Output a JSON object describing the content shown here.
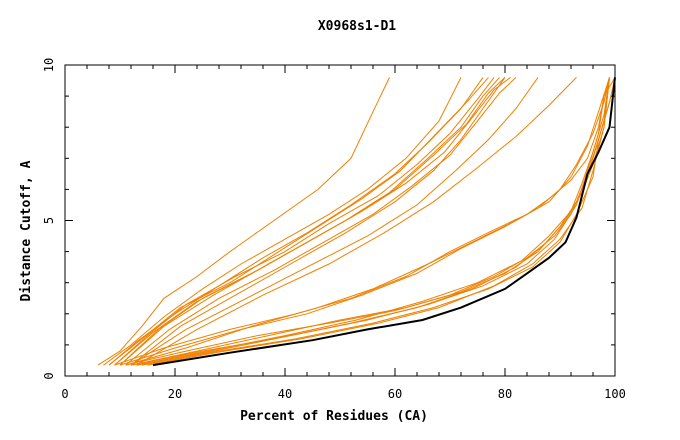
{
  "chart_data": {
    "type": "line",
    "title": "X0968s1-D1",
    "xlabel": "Percent of Residues (CA)",
    "ylabel": "Distance Cutoff, A",
    "xlim": [
      0,
      100
    ],
    "ylim": [
      0,
      10
    ],
    "x_ticks": [
      0,
      20,
      40,
      60,
      80,
      100
    ],
    "y_ticks": [
      0,
      5,
      10
    ],
    "grid": false,
    "colors": {
      "models": "#f08000",
      "highlight": "#000000",
      "frame": "#000000"
    },
    "highlight_series": {
      "name": "",
      "points": [
        [
          16,
          0.35
        ],
        [
          30,
          0.75
        ],
        [
          45,
          1.15
        ],
        [
          55,
          1.5
        ],
        [
          65,
          1.8
        ],
        [
          72,
          2.2
        ],
        [
          80,
          2.8
        ],
        [
          84,
          3.3
        ],
        [
          88,
          3.8
        ],
        [
          91,
          4.3
        ],
        [
          93,
          5.1
        ],
        [
          95,
          6.5
        ],
        [
          97,
          7.2
        ],
        [
          99,
          8.0
        ],
        [
          100,
          9.6
        ]
      ]
    },
    "series": [
      {
        "points": [
          [
            6,
            0.35
          ],
          [
            10,
            0.8
          ],
          [
            14,
            1.6
          ],
          [
            18,
            2.5
          ],
          [
            24,
            3.2
          ],
          [
            30,
            4.0
          ],
          [
            38,
            5.0
          ],
          [
            46,
            6.0
          ],
          [
            52,
            7.0
          ],
          [
            56,
            8.5
          ],
          [
            59,
            9.6
          ]
        ]
      },
      {
        "points": [
          [
            7,
            0.35
          ],
          [
            12,
            1.0
          ],
          [
            18,
            1.9
          ],
          [
            25,
            2.8
          ],
          [
            32,
            3.6
          ],
          [
            40,
            4.4
          ],
          [
            48,
            5.2
          ],
          [
            55,
            6.0
          ],
          [
            62,
            7.0
          ],
          [
            68,
            8.2
          ],
          [
            72,
            9.6
          ]
        ]
      },
      {
        "points": [
          [
            8,
            0.35
          ],
          [
            13,
            1.1
          ],
          [
            20,
            2.0
          ],
          [
            28,
            2.9
          ],
          [
            36,
            3.8
          ],
          [
            44,
            4.6
          ],
          [
            52,
            5.5
          ],
          [
            60,
            6.5
          ],
          [
            66,
            7.5
          ],
          [
            72,
            8.6
          ],
          [
            76,
            9.6
          ]
        ]
      },
      {
        "points": [
          [
            8,
            0.35
          ],
          [
            14,
            1.2
          ],
          [
            21,
            2.2
          ],
          [
            30,
            3.0
          ],
          [
            38,
            3.9
          ],
          [
            46,
            4.8
          ],
          [
            54,
            5.7
          ],
          [
            61,
            6.6
          ],
          [
            67,
            7.7
          ],
          [
            73,
            8.8
          ],
          [
            77,
            9.6
          ]
        ]
      },
      {
        "points": [
          [
            9,
            0.35
          ],
          [
            15,
            1.3
          ],
          [
            22,
            2.3
          ],
          [
            31,
            3.2
          ],
          [
            40,
            4.0
          ],
          [
            48,
            4.9
          ],
          [
            57,
            5.8
          ],
          [
            64,
            6.8
          ],
          [
            70,
            7.8
          ],
          [
            75,
            8.9
          ],
          [
            78,
            9.6
          ]
        ]
      },
      {
        "points": [
          [
            9,
            0.35
          ],
          [
            16,
            1.4
          ],
          [
            24,
            2.4
          ],
          [
            34,
            3.3
          ],
          [
            43,
            4.2
          ],
          [
            51,
            5.0
          ],
          [
            59,
            5.9
          ],
          [
            66,
            7.0
          ],
          [
            72,
            8.0
          ],
          [
            76,
            9.0
          ],
          [
            79,
            9.6
          ]
        ]
      },
      {
        "points": [
          [
            10,
            0.35
          ],
          [
            17,
            1.5
          ],
          [
            25,
            2.5
          ],
          [
            35,
            3.4
          ],
          [
            44,
            4.3
          ],
          [
            52,
            5.1
          ],
          [
            60,
            6.0
          ],
          [
            67,
            7.1
          ],
          [
            73,
            8.1
          ],
          [
            77,
            9.1
          ],
          [
            80,
            9.6
          ]
        ]
      },
      {
        "points": [
          [
            10,
            0.35
          ],
          [
            18,
            1.6
          ],
          [
            27,
            2.6
          ],
          [
            36,
            3.5
          ],
          [
            45,
            4.4
          ],
          [
            54,
            5.3
          ],
          [
            62,
            6.2
          ],
          [
            69,
            7.2
          ],
          [
            74,
            8.3
          ],
          [
            78,
            9.2
          ],
          [
            81,
            9.6
          ]
        ]
      },
      {
        "points": [
          [
            11,
            0.35
          ],
          [
            19,
            1.5
          ],
          [
            28,
            2.5
          ],
          [
            38,
            3.4
          ],
          [
            47,
            4.3
          ],
          [
            56,
            5.2
          ],
          [
            63,
            6.1
          ],
          [
            70,
            7.1
          ],
          [
            75,
            8.2
          ],
          [
            79,
            9.1
          ],
          [
            82,
            9.6
          ]
        ]
      },
      {
        "points": [
          [
            12,
            0.35
          ],
          [
            21,
            1.6
          ],
          [
            31,
            2.6
          ],
          [
            41,
            3.6
          ],
          [
            51,
            4.6
          ],
          [
            60,
            5.6
          ],
          [
            67,
            6.6
          ],
          [
            72,
            7.6
          ],
          [
            76,
            8.6
          ],
          [
            80,
            9.6
          ]
        ]
      },
      {
        "points": [
          [
            12,
            0.35
          ],
          [
            22,
            1.5
          ],
          [
            33,
            2.5
          ],
          [
            44,
            3.5
          ],
          [
            55,
            4.5
          ],
          [
            64,
            5.5
          ],
          [
            71,
            6.6
          ],
          [
            77,
            7.6
          ],
          [
            82,
            8.6
          ],
          [
            86,
            9.6
          ]
        ]
      },
      {
        "points": [
          [
            13,
            0.35
          ],
          [
            24,
            1.5
          ],
          [
            36,
            2.6
          ],
          [
            48,
            3.6
          ],
          [
            58,
            4.6
          ],
          [
            67,
            5.6
          ],
          [
            75,
            6.7
          ],
          [
            82,
            7.7
          ],
          [
            88,
            8.7
          ],
          [
            93,
            9.6
          ]
        ]
      },
      {
        "points": [
          [
            9,
            0.35
          ],
          [
            18,
            0.9
          ],
          [
            30,
            1.5
          ],
          [
            42,
            2.0
          ],
          [
            52,
            2.5
          ],
          [
            62,
            3.2
          ],
          [
            70,
            4.0
          ],
          [
            78,
            4.7
          ],
          [
            84,
            5.2
          ],
          [
            88,
            5.7
          ],
          [
            92,
            6.3
          ],
          [
            95,
            7.0
          ],
          [
            97,
            8.0
          ],
          [
            98,
            9.0
          ],
          [
            99,
            9.6
          ]
        ]
      },
      {
        "points": [
          [
            10,
            0.35
          ],
          [
            20,
            0.9
          ],
          [
            32,
            1.5
          ],
          [
            44,
            2.0
          ],
          [
            54,
            2.6
          ],
          [
            64,
            3.3
          ],
          [
            72,
            4.1
          ],
          [
            80,
            4.8
          ],
          [
            86,
            5.4
          ],
          [
            90,
            6.0
          ],
          [
            93,
            6.8
          ],
          [
            96,
            7.8
          ],
          [
            98,
            8.8
          ],
          [
            99,
            9.6
          ]
        ]
      },
      {
        "points": [
          [
            11,
            0.35
          ],
          [
            22,
            0.9
          ],
          [
            34,
            1.6
          ],
          [
            46,
            2.2
          ],
          [
            56,
            2.8
          ],
          [
            66,
            3.6
          ],
          [
            74,
            4.3
          ],
          [
            82,
            5.0
          ],
          [
            88,
            5.6
          ],
          [
            92,
            6.4
          ],
          [
            95,
            7.4
          ],
          [
            97,
            8.5
          ],
          [
            99,
            9.6
          ]
        ]
      },
      {
        "points": [
          [
            11,
            0.35
          ],
          [
            22,
            0.8
          ],
          [
            35,
            1.3
          ],
          [
            48,
            1.7
          ],
          [
            60,
            2.1
          ],
          [
            70,
            2.6
          ],
          [
            78,
            3.2
          ],
          [
            84,
            3.8
          ],
          [
            89,
            4.5
          ],
          [
            92,
            5.2
          ],
          [
            94,
            6.0
          ],
          [
            96,
            7.0
          ],
          [
            98,
            8.2
          ],
          [
            99,
            9.6
          ]
        ]
      },
      {
        "points": [
          [
            12,
            0.35
          ],
          [
            24,
            0.8
          ],
          [
            37,
            1.3
          ],
          [
            50,
            1.8
          ],
          [
            62,
            2.2
          ],
          [
            72,
            2.7
          ],
          [
            80,
            3.3
          ],
          [
            86,
            4.0
          ],
          [
            90,
            4.8
          ],
          [
            93,
            5.6
          ],
          [
            95,
            6.5
          ],
          [
            97,
            7.6
          ],
          [
            99,
            8.8
          ],
          [
            100,
            9.6
          ]
        ]
      },
      {
        "points": [
          [
            12,
            0.35
          ],
          [
            25,
            0.8
          ],
          [
            38,
            1.2
          ],
          [
            52,
            1.7
          ],
          [
            64,
            2.2
          ],
          [
            74,
            2.8
          ],
          [
            82,
            3.5
          ],
          [
            87,
            4.2
          ],
          [
            91,
            5.0
          ],
          [
            94,
            5.9
          ],
          [
            96,
            6.8
          ],
          [
            98,
            8.0
          ],
          [
            99,
            9.6
          ]
        ]
      },
      {
        "points": [
          [
            13,
            0.35
          ],
          [
            26,
            0.8
          ],
          [
            40,
            1.3
          ],
          [
            53,
            1.8
          ],
          [
            65,
            2.4
          ],
          [
            75,
            3.0
          ],
          [
            83,
            3.7
          ],
          [
            88,
            4.5
          ],
          [
            92,
            5.3
          ],
          [
            94,
            6.2
          ],
          [
            96,
            7.2
          ],
          [
            98,
            8.4
          ],
          [
            99,
            9.6
          ]
        ]
      },
      {
        "points": [
          [
            13,
            0.35
          ],
          [
            27,
            0.8
          ],
          [
            41,
            1.3
          ],
          [
            55,
            1.8
          ],
          [
            66,
            2.3
          ],
          [
            76,
            2.9
          ],
          [
            84,
            3.6
          ],
          [
            89,
            4.4
          ],
          [
            93,
            5.5
          ],
          [
            95,
            6.6
          ],
          [
            97,
            7.8
          ],
          [
            98,
            9.0
          ],
          [
            100,
            9.6
          ]
        ]
      },
      {
        "points": [
          [
            14,
            0.35
          ],
          [
            28,
            0.8
          ],
          [
            42,
            1.2
          ],
          [
            56,
            1.7
          ],
          [
            67,
            2.2
          ],
          [
            77,
            2.8
          ],
          [
            85,
            3.5
          ],
          [
            90,
            4.3
          ],
          [
            93,
            5.2
          ],
          [
            96,
            6.4
          ],
          [
            97,
            7.6
          ],
          [
            99,
            8.8
          ],
          [
            100,
            9.6
          ]
        ]
      },
      {
        "points": [
          [
            15,
            0.35
          ],
          [
            29,
            0.8
          ],
          [
            43,
            1.2
          ],
          [
            57,
            1.7
          ],
          [
            68,
            2.2
          ],
          [
            78,
            2.9
          ],
          [
            85,
            3.6
          ],
          [
            90,
            4.4
          ],
          [
            94,
            5.4
          ],
          [
            96,
            6.6
          ],
          [
            98,
            8.0
          ],
          [
            99,
            9.6
          ]
        ]
      }
    ]
  }
}
